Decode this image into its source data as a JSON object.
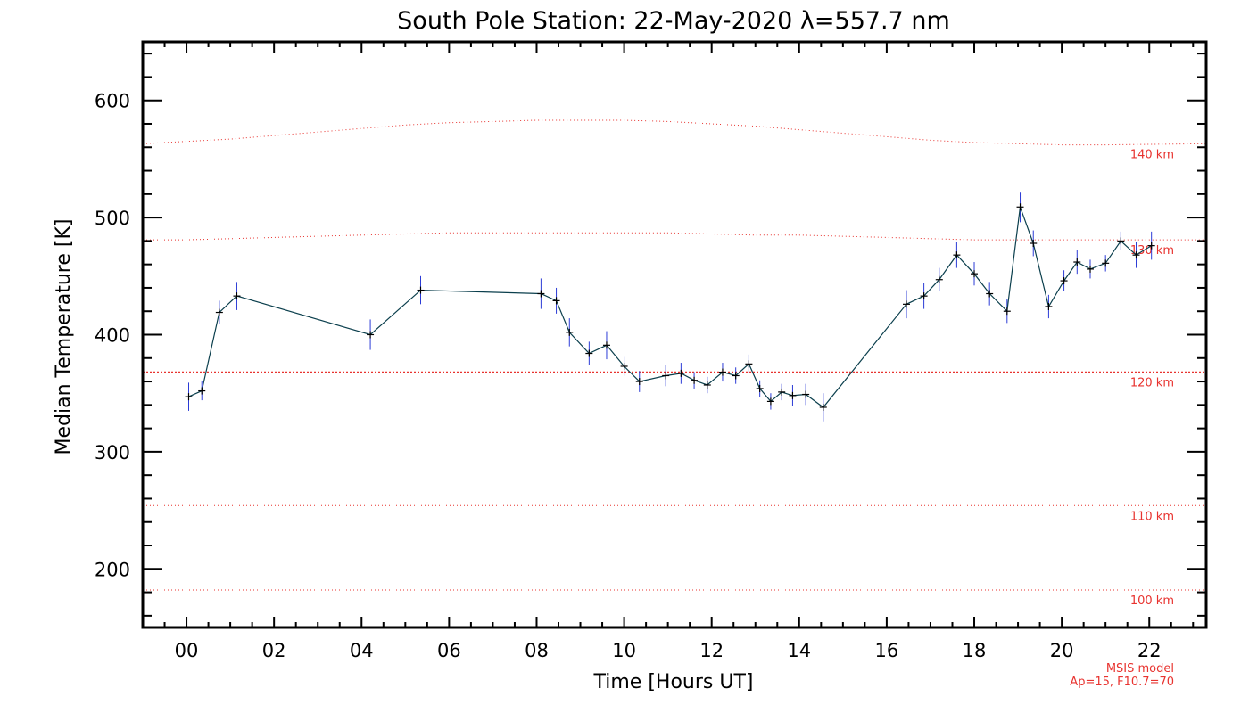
{
  "chart_data": {
    "type": "line",
    "title": "South Pole Station: 22-May-2020 λ=557.7 nm",
    "xlabel": "Time [Hours UT]",
    "ylabel": "Median Temperature [K]",
    "xlim": [
      -1,
      23.3
    ],
    "ylim": [
      150,
      650
    ],
    "xticks": [
      "00",
      "02",
      "04",
      "06",
      "08",
      "10",
      "12",
      "14",
      "16",
      "18",
      "20",
      "22"
    ],
    "yticks": [
      "200",
      "300",
      "400",
      "500",
      "600"
    ],
    "series": [
      {
        "name": "Median Temperature",
        "x": [
          0.05,
          0.35,
          0.75,
          1.15,
          4.2,
          5.35,
          8.1,
          8.45,
          8.75,
          9.2,
          9.6,
          10.0,
          10.35,
          10.95,
          11.3,
          11.6,
          11.9,
          12.25,
          12.55,
          12.85,
          13.1,
          13.35,
          13.6,
          13.85,
          14.15,
          14.55,
          16.45,
          16.85,
          17.2,
          17.6,
          18.0,
          18.35,
          18.75,
          19.05,
          19.35,
          19.7,
          20.05,
          20.35,
          20.65,
          21.0,
          21.35,
          21.7,
          22.05
        ],
        "y": [
          347,
          352,
          419,
          433,
          400,
          438,
          435,
          429,
          402,
          384,
          391,
          373,
          360,
          365,
          367,
          361,
          357,
          368,
          365,
          375,
          354,
          343,
          351,
          348,
          349,
          338,
          426,
          433,
          447,
          468,
          452,
          435,
          420,
          509,
          478,
          424,
          446,
          462,
          456,
          461,
          480,
          468,
          476
        ],
        "err": [
          12,
          8,
          10,
          12,
          13,
          12,
          13,
          11,
          12,
          10,
          12,
          8,
          9,
          9,
          9,
          7,
          7,
          8,
          7,
          8,
          7,
          7,
          7,
          9,
          9,
          12,
          12,
          11,
          10,
          11,
          10,
          10,
          10,
          13,
          11,
          10,
          9,
          10,
          8,
          7,
          8,
          11,
          12
        ]
      }
    ],
    "model_levels": [
      {
        "label": "140 km",
        "values": [
          563,
          565,
          567,
          570,
          573,
          576,
          579,
          581,
          582,
          583,
          583,
          583,
          582,
          580,
          578,
          575,
          572,
          569,
          566,
          564,
          563,
          562,
          562,
          563
        ]
      },
      {
        "label": "130 km",
        "values": [
          481,
          481,
          482,
          483,
          484,
          485,
          486,
          487,
          487,
          487,
          487,
          487,
          487,
          486,
          485,
          485,
          484,
          483,
          482,
          481,
          481,
          481,
          481,
          481
        ]
      },
      {
        "label": "120 km",
        "values": [
          368,
          368,
          368,
          368,
          368,
          368,
          368,
          368,
          368,
          368,
          368,
          368,
          368,
          368,
          368,
          368,
          368,
          368,
          368,
          368,
          368,
          368,
          368,
          368
        ]
      },
      {
        "label": "110 km",
        "values": [
          254,
          254,
          254,
          254,
          254,
          254,
          254,
          254,
          254,
          254,
          254,
          254,
          254,
          254,
          254,
          254,
          254,
          254,
          254,
          254,
          254,
          254,
          254,
          254
        ]
      },
      {
        "label": "100 km",
        "values": [
          182,
          182,
          182,
          182,
          182,
          182,
          182,
          182,
          182,
          182,
          182,
          182,
          182,
          182,
          182,
          182,
          182,
          182,
          182,
          182,
          182,
          182,
          182,
          182
        ]
      }
    ],
    "model_x": [
      -1,
      0,
      1,
      2,
      3,
      4,
      5,
      6,
      7,
      8,
      9,
      10,
      11,
      12,
      13,
      14,
      15,
      16,
      17,
      18,
      19,
      20,
      21,
      23.3
    ],
    "model_note": [
      "MSIS model",
      "Ap=15, F10.7=70"
    ],
    "colors": {
      "line": "#0b3f4d",
      "error_bar": "#2b3bd6",
      "marker": "#000000",
      "model": "#e8332f",
      "axis": "#000000"
    }
  }
}
